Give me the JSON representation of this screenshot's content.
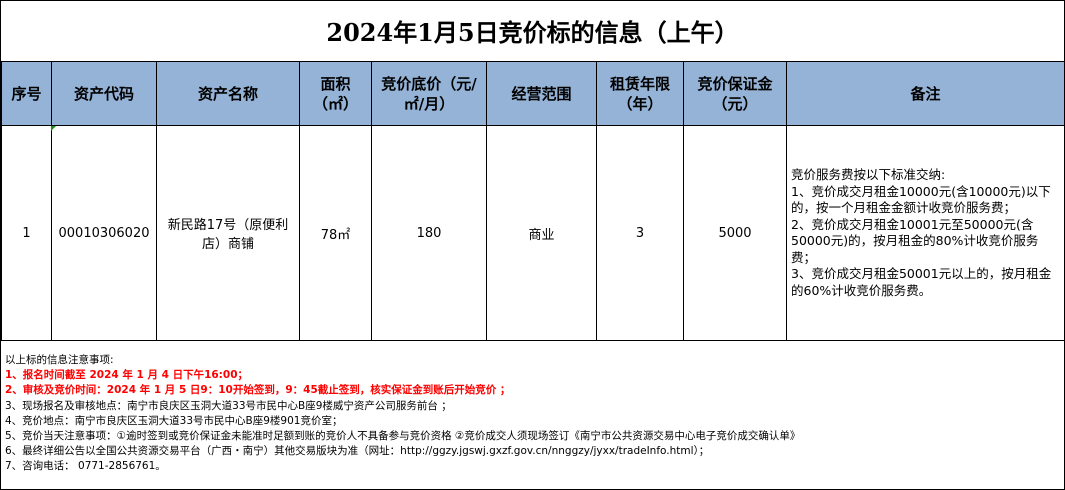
{
  "title": "2024年1月5日竞价标的信息（上午）",
  "headers": [
    "序号",
    "资产代码",
    "资产名称",
    "面积（㎡）",
    "竞价底价（元/㎡/月）",
    "经营范围",
    "租赁年限（年）",
    "竞价保证金（元）",
    "备注"
  ],
  "rows": [
    {
      "no": "1",
      "code": "00010306020",
      "name": "新民路17号（原便利店）商铺",
      "area": "78㎡",
      "price": "180",
      "scope": "商业",
      "years": "3",
      "deposit": "5000",
      "remark": [
        "竞价服务费按以下标准交纳:",
        "1、竞价成交月租金10000元(含10000元)以下的，按一个月租金金额计收竞价服务费；",
        "2、竞价成交月租金10001元至50000元(含50000元)的，按月租金的80%计收竞价服务费；",
        "3、竞价成交月租金50001元以上的，按月租金的60%计收竞价服务费。"
      ]
    }
  ],
  "notes": {
    "heading": "以上标的信息注意事项:",
    "items": [
      "1、报名时间截至 2024 年 1 月 4 日下午16:00；",
      "2、审核及竞价时间：2024 年 1 月 5 日9：10开始签到，9：45截止签到，核实保证金到账后开始竞价 ；",
      "3、现场报名及审核地点：南宁市良庆区玉洞大道33号市民中心B座9楼威宁资产公司服务前台 ；",
      "4、竞价地点：南宁市良庆区玉洞大道33号市民中心B座9楼901竞价室；",
      "5、竞价当天注意事项：①逾时签到或竞价保证金未能准时足额到账的竞价人不具备参与竞价资格 ②竞价成交人须现场签订《南宁市公共资源交易中心电子竞价成交确认单》",
      "6、最终详细公告以全国公共资源交易平台（广西・南宁）其他交易版块为准（网址：http://ggzy.jgswj.gxzf.gov.cn/nnggzy/jyxx/tradeInfo.html）；",
      "7、咨询电话： 0771-2856761。"
    ]
  },
  "colors": {
    "header_bg": "#95b3d7",
    "highlight": "#ff0000"
  }
}
